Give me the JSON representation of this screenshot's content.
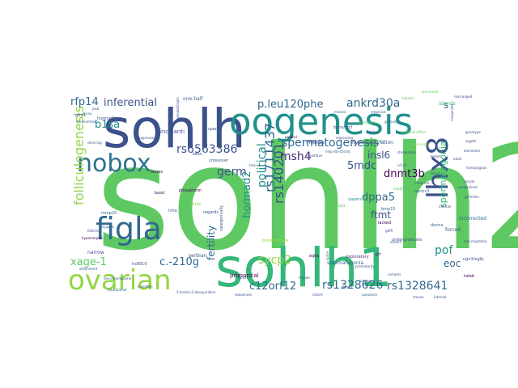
{
  "words": [
    {
      "text": "sohlh2",
      "color": "#5ec962"
    },
    {
      "text": "sohlh1",
      "color": "#35b779"
    },
    {
      "text": "sohlh",
      "color": "#3b528b"
    },
    {
      "text": "oogenesis",
      "color": "#21918c"
    },
    {
      "text": "nobox",
      "color": "#2c728e"
    },
    {
      "text": "lhx8",
      "color": "#3b528b"
    },
    {
      "text": "figla",
      "color": "#31688e"
    },
    {
      "text": "ovarian",
      "color": "#90d743"
    },
    {
      "text": "rs6563386",
      "color": "#3b528b"
    },
    {
      "text": "folliculogenesis",
      "color": "#90d743"
    },
    {
      "text": "spermatogenesis",
      "color": "#31688e"
    },
    {
      "text": "p.leu120phe",
      "color": "#31688e"
    },
    {
      "text": "rs1711437",
      "color": "#31688e"
    },
    {
      "text": "rfp14",
      "color": "#31688e"
    },
    {
      "text": "inferential",
      "color": "#3b528b"
    },
    {
      "text": "b1sa",
      "color": "#21918c"
    },
    {
      "text": "germ",
      "color": "#3b528b"
    },
    {
      "text": "msh4",
      "color": "#482878"
    },
    {
      "text": "ankrd30a",
      "color": "#31688e"
    },
    {
      "text": "dnmt3b",
      "color": "#440154"
    },
    {
      "text": "dppa5",
      "color": "#31688e"
    },
    {
      "text": "spermatogonia",
      "color": "#35b779"
    },
    {
      "text": "insl6",
      "color": "#3b528b"
    },
    {
      "text": "ftmt",
      "color": "#3b528b"
    },
    {
      "text": "pof",
      "color": "#21918c"
    },
    {
      "text": "eoc",
      "color": "#31688e"
    },
    {
      "text": "5mdc",
      "color": "#3b528b"
    },
    {
      "text": "political",
      "color": "#21918c"
    },
    {
      "text": "hormad2",
      "color": "#21918c"
    },
    {
      "text": "sycp2",
      "color": "#90d743"
    },
    {
      "text": "c.-210g",
      "color": "#31688e"
    },
    {
      "text": "xage-1",
      "color": "#5ec962"
    },
    {
      "text": "fertility",
      "color": "#31688e"
    },
    {
      "text": "c12orf12",
      "color": "#31688e"
    },
    {
      "text": "rs1328626",
      "color": "#31688e"
    },
    {
      "text": "rs1328641",
      "color": "#31688e"
    },
    {
      "text": "rs140201",
      "color": "#3b528b"
    },
    {
      "text": "s",
      "color": "#31688e"
    },
    {
      "text": "hypomethylation",
      "color": "#3b528b"
    },
    {
      "text": "spermatogonia",
      "color": "#31688e"
    },
    {
      "text": "primordial",
      "color": "#440154"
    },
    {
      "text": "one-half",
      "color": "#31688e"
    },
    {
      "text": "inchianti",
      "color": "#3b528b"
    },
    {
      "text": "meiosis",
      "color": "#3b528b"
    },
    {
      "text": "boris/ctcf",
      "color": "#3b528b"
    },
    {
      "text": "islands",
      "color": "#35b779"
    },
    {
      "text": "testes",
      "color": "#440154"
    },
    {
      "text": "tesis",
      "color": "#31688e"
    },
    {
      "text": "crossover",
      "color": "#3b528b"
    },
    {
      "text": "parallel",
      "color": "#440154"
    },
    {
      "text": "serbian",
      "color": "#3b528b"
    },
    {
      "text": "categorically",
      "color": "#3b528b"
    },
    {
      "text": "preoperative",
      "color": "#90d743"
    },
    {
      "text": "inha",
      "color": "#3b528b"
    },
    {
      "text": "hudo",
      "color": "#90d743"
    },
    {
      "text": "basic",
      "color": "#440154"
    },
    {
      "text": "regards",
      "color": "#3b528b"
    },
    {
      "text": "eqtls",
      "color": "#440154"
    },
    {
      "text": "bhlh",
      "color": "#3b528b"
    },
    {
      "text": "vapers",
      "color": "#21918c"
    },
    {
      "text": "sycp1",
      "color": "#5ec962"
    },
    {
      "text": "gfr",
      "color": "#482878"
    },
    {
      "text": "prematurity",
      "color": "#3b528b"
    },
    {
      "text": "exploratory",
      "color": "#482878"
    },
    {
      "text": "undergraduate",
      "color": "#3b528b"
    },
    {
      "text": "lacked",
      "color": "#440154"
    },
    {
      "text": "incorrected",
      "color": "#31688e"
    },
    {
      "text": "donne",
      "color": "#31688e"
    },
    {
      "text": "forced",
      "color": "#3b528b"
    },
    {
      "text": "ngn3/egfp",
      "color": "#3b528b"
    },
    {
      "text": "tafab",
      "color": "#440154"
    },
    {
      "text": "narrow",
      "color": "#3b528b"
    },
    {
      "text": "hs8910",
      "color": "#3b528b"
    },
    {
      "text": "mmp20",
      "color": "#31688e"
    },
    {
      "text": "mirna",
      "color": "#31688e"
    },
    {
      "text": "gfra1",
      "color": "#3b528b"
    },
    {
      "text": "amenorrhea",
      "color": "#3b528b"
    },
    {
      "text": "hormad1",
      "color": "#3b528b"
    },
    {
      "text": "plsb",
      "color": "#31688e"
    },
    {
      "text": "sperm",
      "color": "#3b528b"
    },
    {
      "text": "keen",
      "color": "#3b528b"
    },
    {
      "text": "phsuphorin",
      "color": "#440154"
    },
    {
      "text": "dmc1",
      "color": "#3b528b"
    },
    {
      "text": "educational",
      "color": "#31688e"
    },
    {
      "text": "sequences",
      "color": "#3b528b"
    },
    {
      "text": "5-bromo-2-deoxyuridine",
      "color": "#3b528b"
    },
    {
      "text": "splice",
      "color": "#31688e"
    },
    {
      "text": "stretch",
      "color": "#3b528b"
    },
    {
      "text": "gdf9",
      "color": "#3b528b"
    },
    {
      "text": "bmp15",
      "color": "#31688e"
    },
    {
      "text": "cautionary",
      "color": "#5ec962"
    },
    {
      "text": "nanos3",
      "color": "#31688e"
    },
    {
      "text": "maternal",
      "color": "#31688e"
    },
    {
      "text": "pericentric",
      "color": "#90d743"
    },
    {
      "text": "polygenic",
      "color": "#31688e"
    },
    {
      "text": "hypomorphic",
      "color": "#440154"
    },
    {
      "text": "attainment",
      "color": "#3b528b"
    },
    {
      "text": "ovulation",
      "color": "#3b528b"
    },
    {
      "text": "sex-chromosome",
      "color": "#3b528b"
    },
    {
      "text": "follicles",
      "color": "#3b528b"
    },
    {
      "text": "anti-migratory",
      "color": "#3b528b"
    },
    {
      "text": "rearranged",
      "color": "#3b528b"
    },
    {
      "text": "congenital",
      "color": "#3b528b"
    },
    {
      "text": "transcriptome",
      "color": "#5ec962"
    },
    {
      "text": "suppressor",
      "color": "#3b528b"
    },
    {
      "text": "silencing",
      "color": "#3b528b"
    },
    {
      "text": "regressing",
      "color": "#3b528b"
    },
    {
      "text": "paternal",
      "color": "#3b528b"
    },
    {
      "text": "gonadotropin",
      "color": "#3b528b"
    },
    {
      "text": "meiotic",
      "color": "#31688e"
    },
    {
      "text": "repetitive",
      "color": "#3b528b"
    },
    {
      "text": "mdp-db-d5stills",
      "color": "#31688e"
    },
    {
      "text": "stimulation",
      "color": "#3b528b"
    },
    {
      "text": "deletion",
      "color": "#3b528b"
    },
    {
      "text": "pachytene",
      "color": "#5ec962"
    },
    {
      "text": "granulosa",
      "color": "#31688e"
    },
    {
      "text": "maternal-effect",
      "color": "#5ec962"
    },
    {
      "text": "empirical",
      "color": "#31688e"
    },
    {
      "text": "tubules",
      "color": "#5ec962"
    },
    {
      "text": "spermatid",
      "color": "#5ec962"
    },
    {
      "text": "biomarker",
      "color": "#3b528b"
    },
    {
      "text": "adult",
      "color": "#3b528b"
    },
    {
      "text": "homozygous",
      "color": "#3b528b"
    },
    {
      "text": "tested",
      "color": "#3b528b"
    },
    {
      "text": "germline",
      "color": "#3b528b"
    },
    {
      "text": "infertile",
      "color": "#3b528b"
    },
    {
      "text": "unexplained",
      "color": "#3b528b"
    },
    {
      "text": "bmp4",
      "color": "#31688e"
    },
    {
      "text": "nr5a1",
      "color": "#3b528b"
    },
    {
      "text": "oocyte",
      "color": "#3b528b"
    },
    {
      "text": "zygote",
      "color": "#3b528b"
    },
    {
      "text": "genotype",
      "color": "#3b528b"
    },
    {
      "text": "variants",
      "color": "#3b528b"
    },
    {
      "text": "embryo",
      "color": "#3b528b"
    },
    {
      "text": "female",
      "color": "#3b528b"
    },
    {
      "text": "apoptosis",
      "color": "#31688e"
    },
    {
      "text": "mouse",
      "color": "#3b528b"
    },
    {
      "text": "interval",
      "color": "#3b528b"
    },
    {
      "text": "cohort",
      "color": "#3b528b"
    }
  ]
}
